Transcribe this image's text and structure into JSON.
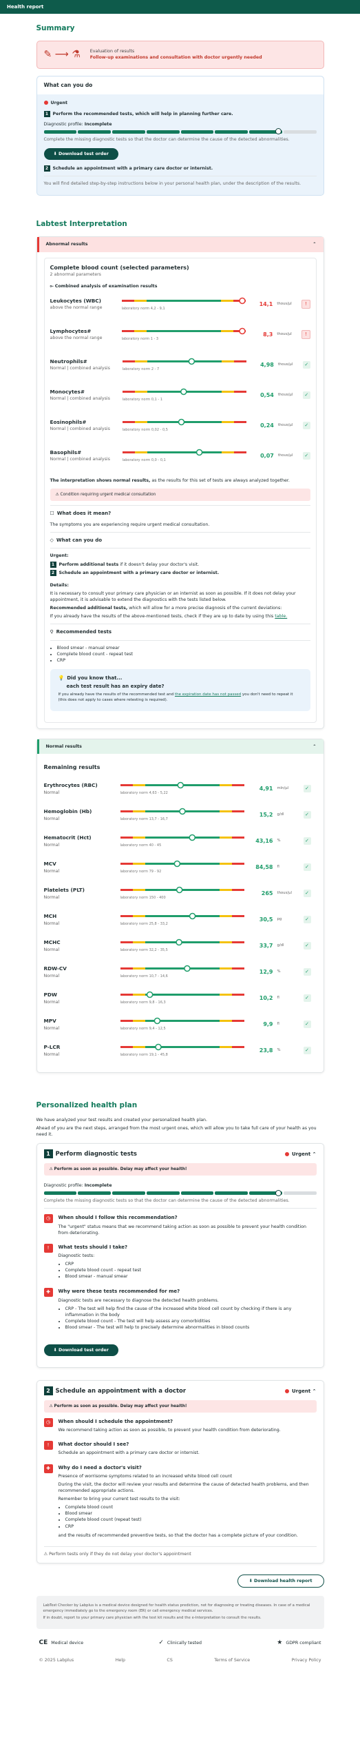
{
  "header": {
    "title": "Health report"
  },
  "summary": {
    "heading": "Summary",
    "alert_title": "Evaluation of results",
    "alert_text": "Follow-up examinations and consultation with doctor urgently needed"
  },
  "todo": {
    "heading": "What can you do",
    "urgent": "Urgent",
    "steps": [
      {
        "number": "1",
        "text": "Perform the recommended tests, which will help in planning further care."
      },
      {
        "number": "2",
        "text": "Schedule an appointment with a primary care doctor or internist."
      }
    ],
    "profile_label": "Diagnostic profile:",
    "profile_status": "Incomplete",
    "profile_note": "Complete the missing diagnostic tests so that the doctor can determine the cause of the detected abnormalities.",
    "button": "Download test order",
    "footer": "You will find detailed step-by-step instructions below in your personal health plan, under the description of the results."
  },
  "interpretation": {
    "heading": "Labtest Interpretation",
    "abnormal": {
      "header": "Abnormal results",
      "panel_title": "Complete blood count (selected parameters)",
      "panel_subtitle": "2 abnormal parameters",
      "combined_label": "Combined analysis of examination results",
      "tests": [
        {
          "name": "Leukocytes (WBC)",
          "status": "above the normal range",
          "value": 14.1,
          "value_label": "14,1",
          "unit": "thous/µl",
          "norm_low": 4.2,
          "norm_high": 9.1,
          "norm_label": "laboratory norm 4,2 - 9,1"
        },
        {
          "name": "Lymphocytes#",
          "status": "above the normal range",
          "value": 8.3,
          "value_label": "8,3",
          "unit": "thous/µl",
          "norm_low": 1,
          "norm_high": 3,
          "norm_label": "laboratory norm 1 - 3"
        },
        {
          "name": "Neutrophils#",
          "status": "Normal | combined analysis",
          "value": 4.98,
          "value_label": "4,98",
          "unit": "thous/µl",
          "norm_low": 2,
          "norm_high": 7,
          "norm_label": "laboratory norm 2 - 7"
        },
        {
          "name": "Monocytes#",
          "status": "Normal | combined analysis",
          "value": 0.54,
          "value_label": "0,54",
          "unit": "thous/µl",
          "norm_low": 0.1,
          "norm_high": 1,
          "norm_label": "laboratory norm 0,1 - 1"
        },
        {
          "name": "Eosinophils#",
          "status": "Normal | combined analysis",
          "value": 0.24,
          "value_label": "0,24",
          "unit": "thous/µl",
          "norm_low": 0.02,
          "norm_high": 0.5,
          "norm_label": "laboratory norm 0,02 - 0,5"
        },
        {
          "name": "Basophils#",
          "status": "Normal | combined analysis",
          "value": 0.07,
          "value_label": "0,07",
          "unit": "thous/µl",
          "norm_low": 0,
          "norm_high": 0.1,
          "norm_label": "laboratory norm 0,0 - 0,1"
        }
      ],
      "summary_bold": "The interpretation shows normal results,",
      "summary_text": "as the results for this set of tests are always analyzed together.",
      "warning": "Condition requiring urgent medical consultation",
      "meaning_heading": "What does it mean?",
      "meaning_text": "The symptoms you are experiencing require urgent medical consultation.",
      "todo_heading": "What can you do",
      "urgent_label": "Urgent:",
      "steps": [
        {
          "number": "1",
          "bold": "Perform additional tests",
          "text": "if it doesn't delay your doctor's visit."
        },
        {
          "number": "2",
          "bold": "Schedule an appointment with a primary care doctor or internist."
        }
      ],
      "details_heading": "Details:",
      "details_text": "It is necessary to consult your primary care physician or an internist as soon as possible. If it does not delay your appointment, it is advisable to extend the diagnostics with the tests listed below.",
      "recommended_bold": "Recommended additional tests,",
      "recommended_text": "which will allow for a more precise diagnosis of the current deviations:",
      "check_text": "If you already have the results of the above-mentioned tests, check if they are up to date by using this",
      "check_link": "table.",
      "recommended_heading": "Recommended tests",
      "recommended": [
        "Blood smear - manual smear",
        "Complete blood count - repeat test",
        "CRP"
      ],
      "tip_title": "Did you know that...",
      "tip_subtitle": "each test result has an expiry date?",
      "tip_text": "If you already have the results of the recommended test and",
      "tip_link": "the expiration date has not passed",
      "tip_text2": "you don't need to repeat it (this does not apply to cases where retesting is required)."
    },
    "normal": {
      "header": "Normal results",
      "panel_title": "Remaining results",
      "tests": [
        {
          "name": "Erythrocytes (RBC)",
          "status": "Normal",
          "value": 4.91,
          "value_label": "4,91",
          "unit": "mln/µl",
          "norm_low": 4.63,
          "norm_high": 5.22,
          "norm_label": "laboratory norm 4,63 - 5,22"
        },
        {
          "name": "Hemoglobin (Hb)",
          "status": "Normal",
          "value": 15.2,
          "value_label": "15,2",
          "unit": "g/dl",
          "norm_low": 13.7,
          "norm_high": 16.7,
          "norm_label": "laboratory norm 13,7 - 16,7"
        },
        {
          "name": "Hematocrit (Hct)",
          "status": "Normal",
          "value": 43.16,
          "value_label": "43,16",
          "unit": "%",
          "norm_low": 40,
          "norm_high": 45,
          "norm_label": "laboratory norm 40 - 45"
        },
        {
          "name": "MCV",
          "status": "Normal",
          "value": 84.58,
          "value_label": "84,58",
          "unit": "fl",
          "norm_low": 79,
          "norm_high": 92,
          "norm_label": "laboratory norm 79 - 92"
        },
        {
          "name": "Platelets (PLT)",
          "status": "Normal",
          "value": 265,
          "value_label": "265",
          "unit": "thous/µl",
          "norm_low": 150,
          "norm_high": 400,
          "norm_label": "laboratory norm 150 - 400"
        },
        {
          "name": "MCH",
          "status": "Normal",
          "value": 30.5,
          "value_label": "30,5",
          "unit": "pg",
          "norm_low": 25.8,
          "norm_high": 33.2,
          "norm_label": "laboratory norm 25,8 - 33,2"
        },
        {
          "name": "MCHC",
          "status": "Normal",
          "value": 33.7,
          "value_label": "33,7",
          "unit": "g/dl",
          "norm_low": 32.2,
          "norm_high": 35.5,
          "norm_label": "laboratory norm 32,2 - 35,5"
        },
        {
          "name": "RDW-CV",
          "status": "Normal",
          "value": 12.9,
          "value_label": "12,9",
          "unit": "%",
          "norm_low": 10.7,
          "norm_high": 14.6,
          "norm_label": "laboratory norm 10,7 - 14,6"
        },
        {
          "name": "PDW",
          "status": "Normal",
          "value": 10.2,
          "value_label": "10,2",
          "unit": "fl",
          "norm_low": 9.8,
          "norm_high": 16.3,
          "norm_label": "laboratory norm 9,8 - 16,3"
        },
        {
          "name": "MPV",
          "status": "Normal",
          "value": 9.9,
          "value_label": "9,9",
          "unit": "fl",
          "norm_low": 9.4,
          "norm_high": 12.5,
          "norm_label": "laboratory norm 9,4 - 12,5"
        },
        {
          "name": "P-LCR",
          "status": "Normal",
          "value": 23.8,
          "value_label": "23,8",
          "unit": "%",
          "norm_low": 19.1,
          "norm_high": 45.8,
          "norm_label": "laboratory norm 19,1 - 45,8"
        }
      ]
    }
  },
  "plan": {
    "heading": "Personalized health plan",
    "intro": [
      "We have analyzed your test results and created your personalized health plan.",
      "Ahead of you are the next steps, arranged from the most urgent ones, which will allow you to take full care of your health as you need it."
    ],
    "cards": [
      {
        "number": "1",
        "title": "Perform diagnostic tests",
        "status": "Urgent",
        "warning": "Perform as soon as possible. Delay may affect your health!",
        "profile_label": "Diagnostic profile:",
        "profile_status": "Incomplete",
        "profile_note": "Complete the missing diagnostic tests so that the doctor can determine the cause of the detected abnormalities.",
        "items": [
          {
            "title": "When should I follow this recommendation?",
            "paragraphs": [
              "The \"urgent\" status means that we recommend taking action as soon as possible to prevent your health condition from deteriorating."
            ]
          },
          {
            "title": "What tests should I take?",
            "paragraphs": [
              "Diagnostic tests:"
            ],
            "list": [
              "CRP",
              "Complete blood count - repeat test",
              "Blood smear - manual smear"
            ]
          },
          {
            "title": "Why were these tests recommended for me?",
            "paragraphs": [
              "Diagnostic tests are necessary to diagnose the detected health problems."
            ],
            "list": [
              "CRP - The test will help find the cause of the increased white blood cell count by checking if there is any inflammation in the body",
              "Complete blood count - The test will help assess any comorbidities",
              "Blood smear - The test will help to precisely determine abnormalities in blood counts"
            ]
          }
        ],
        "button": "Download test order"
      },
      {
        "number": "2",
        "title": "Schedule an appointment with a doctor",
        "status": "Urgent",
        "warning": "Perform as soon as possible. Delay may affect your health!",
        "items": [
          {
            "title": "When should I schedule the appointment?",
            "paragraphs": [
              "We recommend taking action as soon as possible, to prevent your health condition from deteriorating."
            ]
          },
          {
            "title": "What doctor should I see?",
            "paragraphs": [
              "Schedule an appointment with a primary care doctor or internist."
            ]
          },
          {
            "title": "Why do I need a doctor's visit?",
            "paragraphs": [
              "Presence of worrisome symptoms related to an increased white blood cell count",
              "During the visit, the doctor will review your results and determine the cause of detected health problems, and then recommended appropriate actions.",
              "Remember to bring your current test results to the visit:"
            ],
            "list": [
              "Complete blood count",
              "Blood smear",
              "Complete blood count (repeat test)",
              "CRP"
            ],
            "after": "and the results of recommended preventive tests, so that the doctor has a complete picture of your condition."
          }
        ],
        "note": "Perform tests only if they do not delay your doctor's appointment"
      }
    ]
  },
  "download": "Download health report",
  "disclaimer": [
    "LabTest Checker by Labplus is a medical device designed for health status prediction, not for diagnosing or treating diseases. In case of a medical emergency immediately go to the emergency room (ER) or call emergency medical services.",
    "If in doubt, report to your primary care physician with the test kit results and the e-Interpretation to consult the results."
  ],
  "badges": [
    {
      "icon": "CE",
      "text": "Medical device"
    },
    {
      "icon": "✓",
      "text": "Clinically tested"
    },
    {
      "icon": "★",
      "text": "GDPR compliant"
    }
  ],
  "links": [
    "© 2025 Labplus",
    "Help",
    "CS",
    "Terms of Service",
    "Privacy Policy"
  ]
}
